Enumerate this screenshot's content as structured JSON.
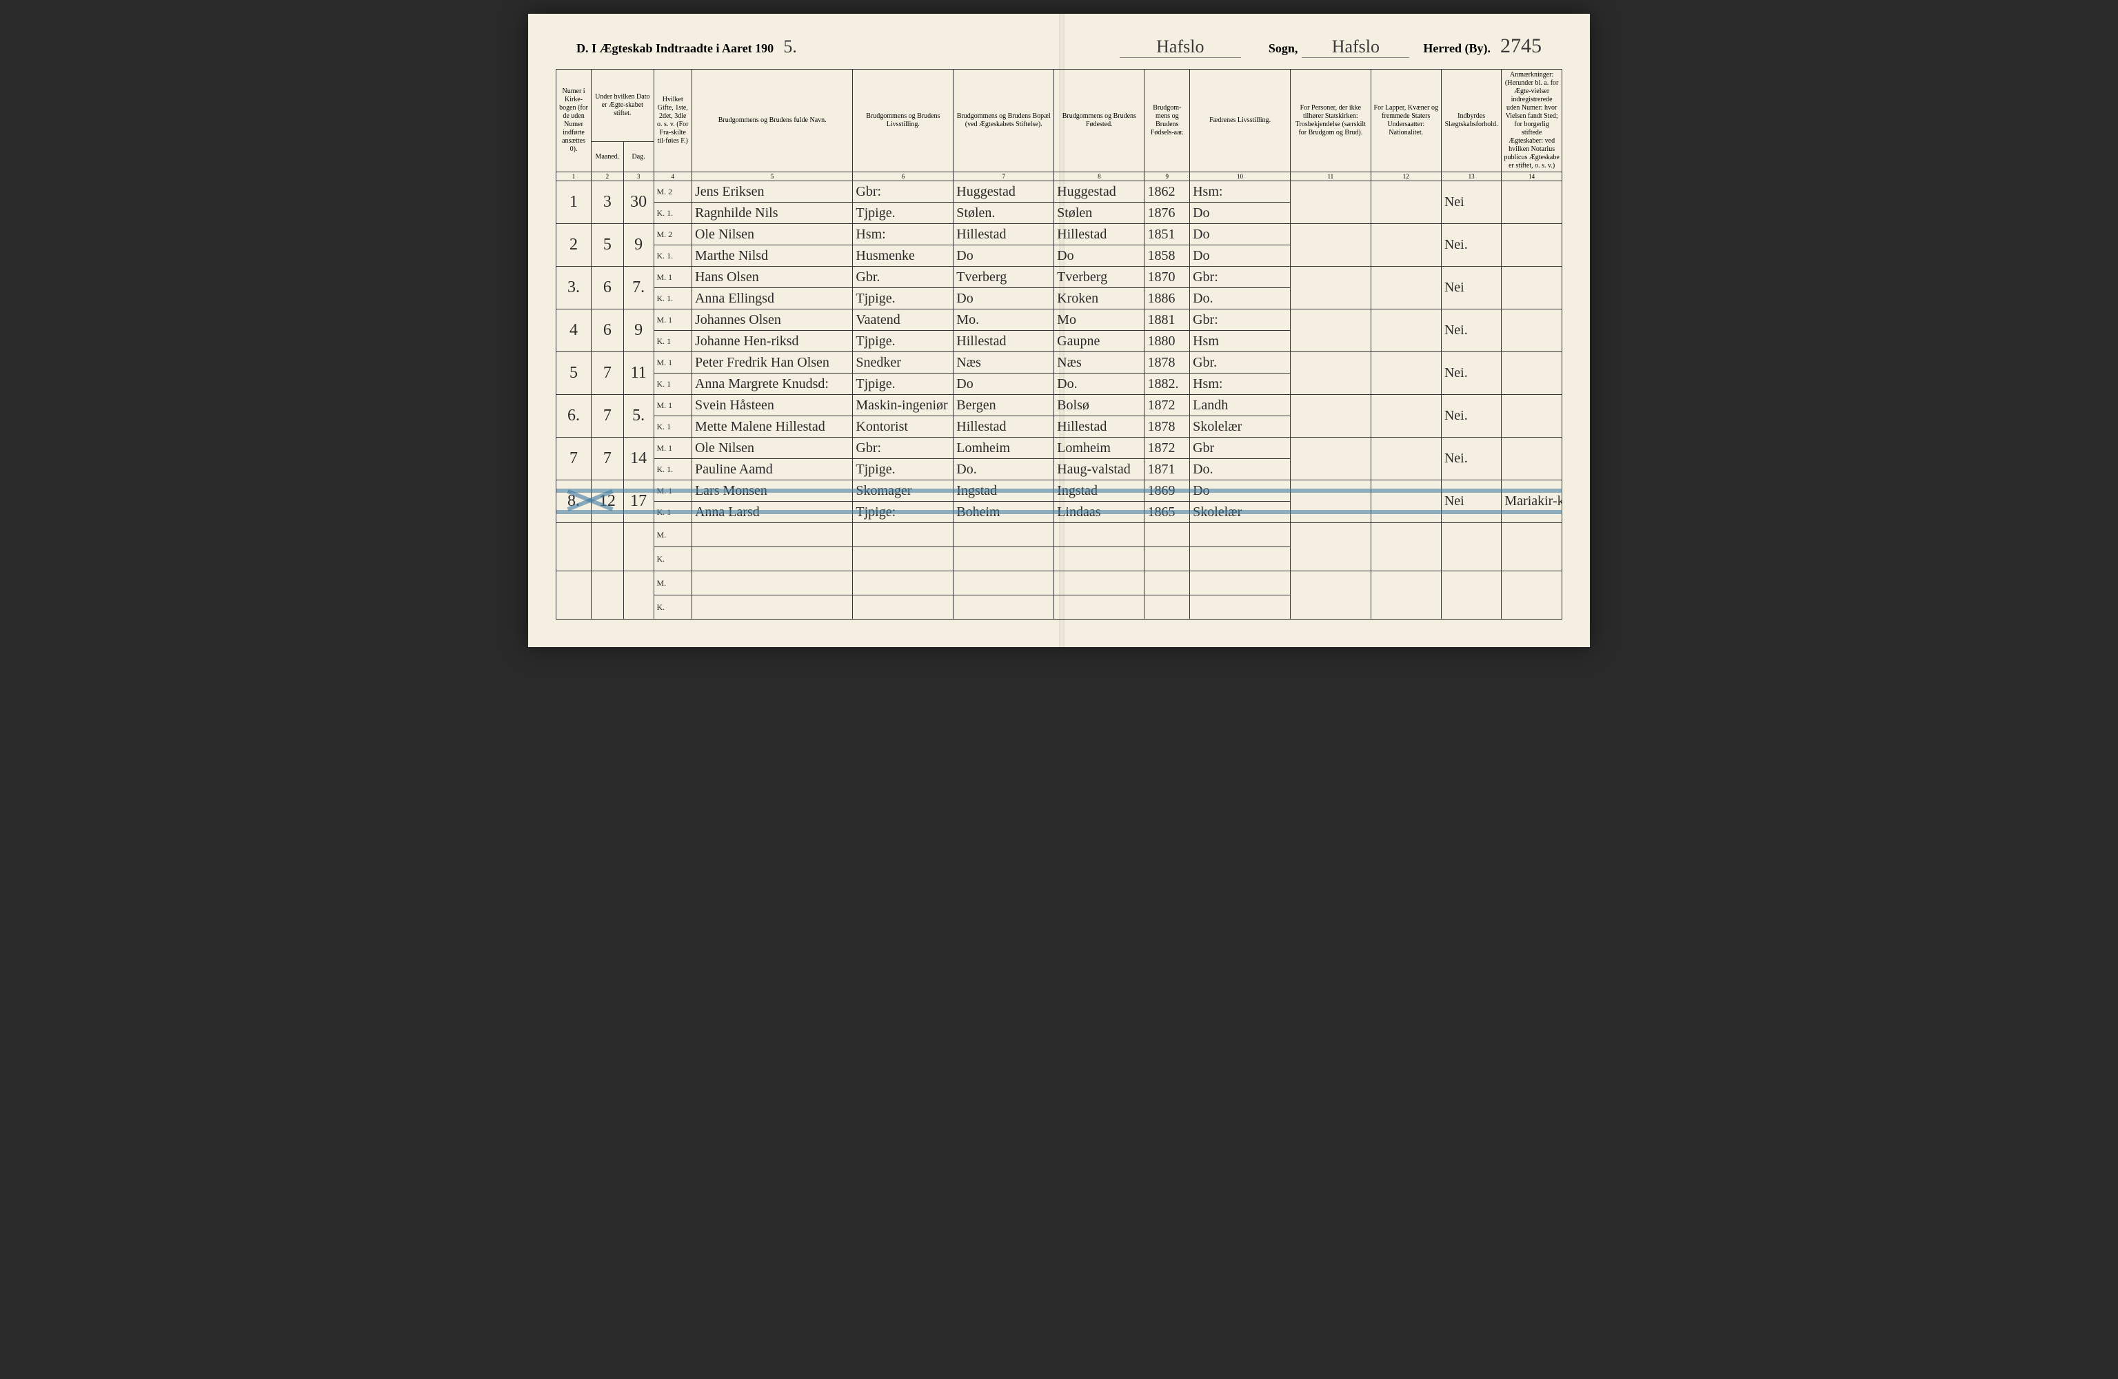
{
  "header": {
    "title_prefix": "D.  I Ægteskab Indtraadte i Aaret 190",
    "year_suffix": "5.",
    "parish_label": "Sogn,",
    "district_label": "Herred (By).",
    "parish_script1": "Hafslo",
    "parish_script2": "Hafslo",
    "page_number": "2745"
  },
  "columns": {
    "c1": "Numer i Kirke-bogen (for de uden Numer indførte ansættes 0).",
    "c2_top": "Under hvilken Dato er Ægte-skabet stiftet.",
    "c2": "Maaned.",
    "c3": "Dag.",
    "c4": "Hvilket Gifte, 1ste, 2det, 3die o. s. v. (For Fra-skilte til-føies F.)",
    "c5": "Brudgommens og Brudens fulde Navn.",
    "c6": "Brudgommens og Brudens Livsstilling.",
    "c7": "Brudgommens og Brudens Bopæl (ved Ægteskabets Stiftelse).",
    "c8": "Brudgommens og Brudens Fødested.",
    "c9": "Brudgom-mens og Brudens Fødsels-aar.",
    "c10": "Fædrenes Livsstilling.",
    "c11": "For Personer, der ikke tilhører Statskirken: Trosbekjendelse (særskilt for Brudgom og Brud).",
    "c12": "For Lapper, Kvæner og fremmede Staters Undersaatter: Nationalitet.",
    "c13": "Indbyrdes Slægtskabsforhold.",
    "c14": "Anmærkninger: (Herunder bl. a. for Ægte-vielser indregistrerede uden Numer: hvor Vielsen fandt Sted; for borgerlig stiftede Ægteskaber: ved hvilken Notarius publicus Ægteskabe er stiftet, o. s. v.)"
  },
  "colnums": [
    "1",
    "2",
    "3",
    "4",
    "5",
    "6",
    "7",
    "8",
    "9",
    "10",
    "11",
    "12",
    "13",
    "14"
  ],
  "rows": [
    {
      "num": "1",
      "m": "3",
      "d": "30",
      "mk": "M. 2",
      "name": "Jens Eriksen",
      "stilling": "Gbr:",
      "bopael": "Huggestad",
      "fodested": "Huggestad",
      "aar": "1862",
      "faedre": "Hsm:",
      "c11": "",
      "c12": "",
      "c13": "Nei",
      "c14": ""
    },
    {
      "num": "",
      "m": "",
      "d": "",
      "mk": "K. 1.",
      "name": "Ragnhilde Nils",
      "stilling": "Tjpige.",
      "bopael": "Stølen.",
      "fodested": "Stølen",
      "aar": "1876",
      "faedre": "Do",
      "c11": "",
      "c12": "",
      "c13": "",
      "c14": ""
    },
    {
      "num": "2",
      "m": "5",
      "d": "9",
      "mk": "M. 2",
      "name": "Ole Nilsen",
      "stilling": "Hsm:",
      "bopael": "Hillestad",
      "fodested": "Hillestad",
      "aar": "1851",
      "faedre": "Do",
      "c11": "",
      "c12": "",
      "c13": "Nei.",
      "c14": ""
    },
    {
      "num": "",
      "m": "",
      "d": "",
      "mk": "K. 1.",
      "name": "Marthe Nilsd",
      "stilling": "Husmenke",
      "bopael": "Do",
      "fodested": "Do",
      "aar": "1858",
      "faedre": "Do",
      "c11": "",
      "c12": "",
      "c13": "",
      "c14": ""
    },
    {
      "num": "3.",
      "m": "6",
      "d": "7.",
      "mk": "M. 1",
      "name": "Hans Olsen",
      "stilling": "Gbr.",
      "bopael": "Tverberg",
      "fodested": "Tverberg",
      "aar": "1870",
      "faedre": "Gbr:",
      "c11": "",
      "c12": "",
      "c13": "Nei",
      "c14": ""
    },
    {
      "num": "",
      "m": "",
      "d": "",
      "mk": "K. 1.",
      "name": "Anna Ellingsd",
      "stilling": "Tjpige.",
      "bopael": "Do",
      "fodested": "Kroken",
      "aar": "1886",
      "faedre": "Do.",
      "c11": "",
      "c12": "",
      "c13": "",
      "c14": ""
    },
    {
      "num": "4",
      "m": "6",
      "d": "9",
      "mk": "M. 1",
      "name": "Johannes Olsen",
      "stilling": "Vaatend",
      "bopael": "Mo.",
      "fodested": "Mo",
      "aar": "1881",
      "faedre": "Gbr:",
      "c11": "",
      "c12": "",
      "c13": "Nei.",
      "c14": ""
    },
    {
      "num": "",
      "m": "",
      "d": "",
      "mk": "K. 1",
      "name": "Johanne Hen-riksd",
      "stilling": "Tjpige.",
      "bopael": "Hillestad",
      "fodested": "Gaupne",
      "aar": "1880",
      "faedre": "Hsm",
      "c11": "",
      "c12": "",
      "c13": "",
      "c14": ""
    },
    {
      "num": "5",
      "m": "7",
      "d": "11",
      "mk": "M. 1",
      "name": "Peter Fredrik Han Olsen",
      "stilling": "Snedker",
      "bopael": "Næs",
      "fodested": "Næs",
      "aar": "1878",
      "faedre": "Gbr.",
      "c11": "",
      "c12": "",
      "c13": "Nei.",
      "c14": ""
    },
    {
      "num": "",
      "m": "",
      "d": "",
      "mk": "K. 1",
      "name": "Anna Margrete Knudsd:",
      "stilling": "Tjpige.",
      "bopael": "Do",
      "fodested": "Do.",
      "aar": "1882.",
      "faedre": "Hsm:",
      "c11": "",
      "c12": "",
      "c13": "",
      "c14": ""
    },
    {
      "num": "6.",
      "m": "7",
      "d": "5.",
      "mk": "M. 1",
      "name": "Svein Håsteen",
      "stilling": "Maskin-ingeniør",
      "bopael": "Bergen",
      "fodested": "Bolsø",
      "aar": "1872",
      "faedre": "Landh",
      "c11": "",
      "c12": "",
      "c13": "Nei.",
      "c14": ""
    },
    {
      "num": "",
      "m": "",
      "d": "",
      "mk": "K. 1",
      "name": "Mette Malene Hillestad",
      "stilling": "Kontorist",
      "bopael": "Hillestad",
      "fodested": "Hillestad",
      "aar": "1878",
      "faedre": "Skolelær",
      "c11": "",
      "c12": "",
      "c13": "",
      "c14": ""
    },
    {
      "num": "7",
      "m": "7",
      "d": "14",
      "mk": "M. 1",
      "name": "Ole Nilsen",
      "stilling": "Gbr:",
      "bopael": "Lomheim",
      "fodested": "Lomheim",
      "aar": "1872",
      "faedre": "Gbr",
      "c11": "",
      "c12": "",
      "c13": "Nei.",
      "c14": ""
    },
    {
      "num": "",
      "m": "",
      "d": "",
      "mk": "K. 1.",
      "name": "Pauline Aamd",
      "stilling": "Tjpige.",
      "bopael": "Do.",
      "fodested": "Haug-valstad",
      "aar": "1871",
      "faedre": "Do.",
      "c11": "",
      "c12": "",
      "c13": "",
      "c14": ""
    },
    {
      "num": "8.",
      "m": "12",
      "d": "17",
      "mk": "M. 1",
      "name": "Lars Monsen",
      "stilling": "Skomager",
      "bopael": "Ingstad",
      "fodested": "Ingstad",
      "aar": "1869",
      "faedre": "Do",
      "c11": "",
      "c12": "",
      "c13": "Nei",
      "c14": "Mariakir-ken Bergen",
      "crossed": true
    },
    {
      "num": "",
      "m": "",
      "d": "",
      "mk": "K. 1",
      "name": "Anna Larsd",
      "stilling": "Tjpige:",
      "bopael": "Boheim",
      "fodested": "Lindaas",
      "aar": "1865",
      "faedre": "Skolelær",
      "c11": "",
      "c12": "",
      "c13": "",
      "c14": "",
      "crossed": true
    }
  ],
  "empty_rows": 4,
  "mk_labels": [
    "M.",
    "K.",
    "M.",
    "K."
  ],
  "colwidths_pct": [
    3.5,
    3.2,
    3.0,
    3.8,
    16.0,
    10.0,
    10.0,
    9.0,
    4.5,
    10.0,
    8.0,
    7.0,
    6.0,
    6.0
  ],
  "colors": {
    "paper": "#f4efe0",
    "ink": "#2a2a2a",
    "rule": "#333333",
    "blue_pencil": "rgba(60,120,160,0.55)"
  }
}
